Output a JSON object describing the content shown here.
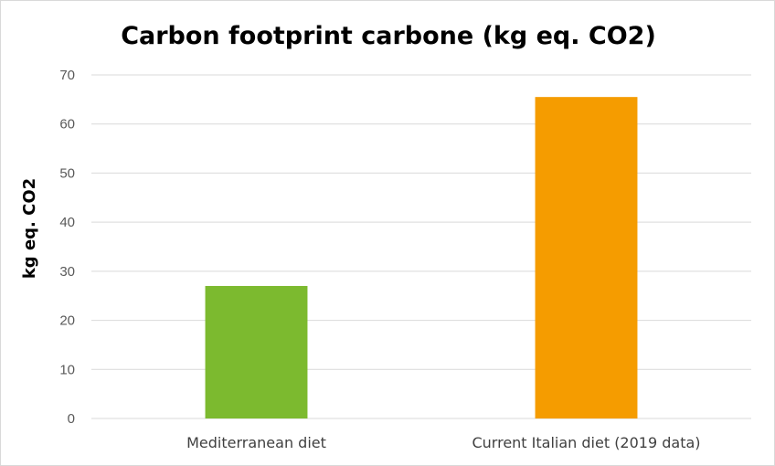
{
  "chart_data": {
    "type": "bar",
    "title": "Carbon footprint carbone (kg eq. CO2)",
    "xlabel": "",
    "ylabel": "kg eq. CO2",
    "categories": [
      "Mediterranean diet",
      "Current Italian diet (2019 data)"
    ],
    "values": [
      27,
      65.5
    ],
    "bar_colors": [
      "#7cba2f",
      "#f59c00"
    ],
    "ylim": [
      0,
      70
    ],
    "yticks": [
      0,
      10,
      20,
      30,
      40,
      50,
      60,
      70
    ],
    "grid": true,
    "legend": "none"
  }
}
